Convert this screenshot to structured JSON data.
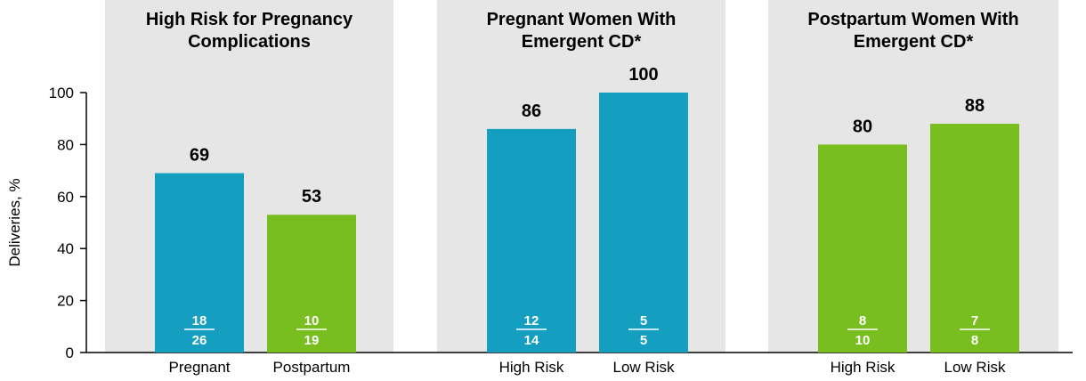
{
  "colors": {
    "pregnant": "#149EBF",
    "postpartum": "#78BE1E",
    "panel_bg": "#E6E6E6",
    "fraction_text": "#FFFFFF"
  },
  "chart_data": {
    "type": "bar",
    "ylabel": "Deliveries, %",
    "ylim": [
      0,
      100
    ],
    "yticks": [
      "0",
      "20",
      "40",
      "60",
      "80",
      "100"
    ],
    "grid": false,
    "panels": [
      {
        "title": [
          "High Risk for Pregnancy",
          "Complications"
        ],
        "categories": [
          "Pregnant",
          "Postpartum"
        ],
        "values": [
          69,
          53
        ],
        "numerators": [
          "18",
          "10"
        ],
        "denominators": [
          "26",
          "19"
        ],
        "colors": [
          "#149EBF",
          "#78BE1E"
        ]
      },
      {
        "title": [
          "Pregnant Women With",
          "Emergent CD*"
        ],
        "categories": [
          "High Risk",
          "Low Risk"
        ],
        "values": [
          86,
          100
        ],
        "numerators": [
          "12",
          "5"
        ],
        "denominators": [
          "14",
          "5"
        ],
        "colors": [
          "#149EBF",
          "#149EBF"
        ]
      },
      {
        "title": [
          "Postpartum Women With",
          "Emergent CD*"
        ],
        "categories": [
          "High Risk",
          "Low Risk"
        ],
        "values": [
          80,
          88
        ],
        "numerators": [
          "8",
          "7"
        ],
        "denominators": [
          "10",
          "8"
        ],
        "colors": [
          "#78BE1E",
          "#78BE1E"
        ]
      }
    ]
  }
}
